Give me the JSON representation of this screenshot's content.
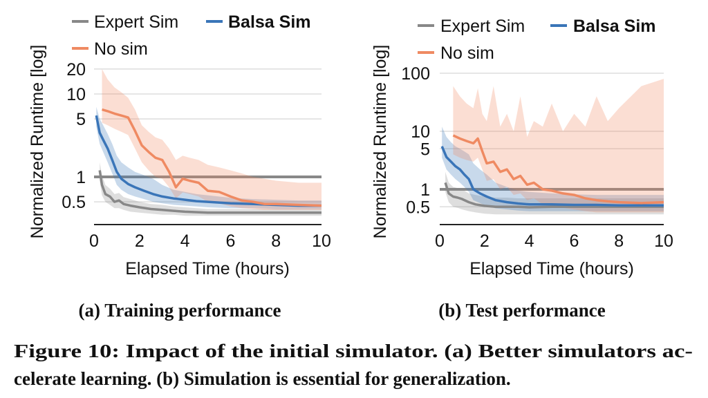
{
  "chart_data": [
    {
      "type": "line",
      "panel_caption": "(a) Training performance",
      "xlabel": "Elapsed Time (hours)",
      "ylabel": "Normalized Runtime [log]",
      "xlim": [
        0,
        10
      ],
      "ylim": [
        0.3,
        25
      ],
      "yscale": "log",
      "x_ticks": [
        "0",
        "2",
        "4",
        "6",
        "8",
        "10"
      ],
      "y_ticks": [
        "20",
        "10",
        "5",
        "1",
        "0.5"
      ],
      "grid": true,
      "legend_position": "top",
      "series": [
        {
          "name": "Expert Sim",
          "color": "#888888",
          "x": [
            0.25,
            0.35,
            0.5,
            0.7,
            0.9,
            1.1,
            1.3,
            1.6,
            2.0,
            2.5,
            3.0,
            3.5,
            4.0,
            5.0,
            6.0,
            7.0,
            8.0,
            9.0,
            10.0
          ],
          "y": [
            1.2,
            0.8,
            0.62,
            0.58,
            0.5,
            0.52,
            0.47,
            0.45,
            0.43,
            0.41,
            0.4,
            0.39,
            0.38,
            0.37,
            0.37,
            0.37,
            0.37,
            0.37,
            0.37
          ],
          "band_low": [
            0.9,
            0.6,
            0.5,
            0.46,
            0.42,
            0.42,
            0.4,
            0.38,
            0.37,
            0.36,
            0.35,
            0.35,
            0.34,
            0.34,
            0.34,
            0.34,
            0.34,
            0.34,
            0.34
          ],
          "band_high": [
            1.5,
            1.05,
            0.8,
            0.72,
            0.62,
            0.64,
            0.57,
            0.54,
            0.5,
            0.47,
            0.46,
            0.44,
            0.43,
            0.41,
            0.41,
            0.41,
            0.41,
            0.41,
            0.41
          ]
        },
        {
          "name": "Balsa Sim",
          "color": "#3a75b8",
          "x": [
            0.1,
            0.25,
            0.4,
            0.6,
            0.8,
            1.0,
            1.2,
            1.5,
            1.8,
            2.2,
            2.6,
            3.0,
            3.5,
            4.0,
            4.5,
            5.0,
            6.0,
            7.0,
            8.0,
            9.0,
            10.0
          ],
          "y": [
            5.5,
            3.4,
            2.8,
            2.2,
            1.6,
            1.15,
            0.95,
            0.82,
            0.75,
            0.68,
            0.62,
            0.58,
            0.55,
            0.53,
            0.51,
            0.5,
            0.48,
            0.47,
            0.46,
            0.45,
            0.45
          ],
          "band_low": [
            4.0,
            2.5,
            2.0,
            1.5,
            1.1,
            0.8,
            0.7,
            0.62,
            0.58,
            0.54,
            0.5,
            0.48,
            0.46,
            0.45,
            0.44,
            0.43,
            0.42,
            0.42,
            0.41,
            0.41,
            0.41
          ],
          "band_high": [
            7.0,
            5.0,
            4.2,
            3.3,
            2.5,
            1.8,
            1.5,
            1.3,
            1.15,
            1.05,
            0.95,
            0.8,
            0.7,
            0.66,
            0.62,
            0.6,
            0.56,
            0.54,
            0.53,
            0.52,
            0.52
          ]
        },
        {
          "name": "No sim",
          "color": "#ef8a62",
          "x": [
            0.35,
            0.6,
            0.9,
            1.2,
            1.5,
            1.8,
            2.1,
            2.4,
            2.7,
            3.0,
            3.3,
            3.6,
            3.9,
            4.2,
            4.6,
            5.0,
            5.5,
            6.0,
            6.5,
            7.0,
            7.5,
            8.0,
            9.0,
            10.0
          ],
          "y": [
            6.5,
            6.2,
            5.8,
            5.5,
            5.2,
            3.6,
            2.4,
            2.0,
            1.7,
            1.6,
            1.15,
            0.75,
            0.95,
            0.9,
            0.85,
            0.68,
            0.66,
            0.58,
            0.52,
            0.5,
            0.47,
            0.47,
            0.46,
            0.45
          ],
          "band_low": [
            4.5,
            4.2,
            3.8,
            3.5,
            3.2,
            2.2,
            1.5,
            1.2,
            1.0,
            0.95,
            0.75,
            0.55,
            0.65,
            0.62,
            0.58,
            0.5,
            0.48,
            0.44,
            0.42,
            0.41,
            0.4,
            0.4,
            0.4,
            0.4
          ],
          "band_high": [
            20.0,
            15.0,
            12.0,
            10.5,
            9.0,
            6.5,
            4.2,
            3.5,
            3.0,
            2.8,
            2.2,
            1.6,
            1.8,
            1.7,
            1.6,
            1.4,
            1.3,
            1.2,
            1.1,
            1.0,
            0.95,
            0.9,
            0.85,
            0.85
          ]
        }
      ]
    },
    {
      "type": "line",
      "panel_caption": "(b) Test performance",
      "xlabel": "Elapsed Time (hours)",
      "ylabel": "Normalized Runtime [log]",
      "xlim": [
        0,
        10
      ],
      "ylim": [
        0.3,
        150
      ],
      "yscale": "log",
      "x_ticks": [
        "0",
        "2",
        "4",
        "6",
        "8",
        "10"
      ],
      "y_ticks": [
        "100",
        "10",
        "5",
        "1",
        "0.5"
      ],
      "grid": true,
      "legend_position": "top",
      "series": [
        {
          "name": "Expert Sim",
          "color": "#888888",
          "x": [
            0.25,
            0.4,
            0.6,
            0.8,
            1.0,
            1.3,
            1.6,
            2.0,
            2.5,
            3.0,
            3.5,
            4.0,
            5.0,
            6.0,
            7.0,
            8.0,
            9.0,
            10.0
          ],
          "y": [
            1.3,
            0.85,
            0.75,
            0.72,
            0.68,
            0.6,
            0.55,
            0.52,
            0.5,
            0.5,
            0.5,
            0.49,
            0.5,
            0.5,
            0.5,
            0.5,
            0.5,
            0.5
          ],
          "band_low": [
            0.9,
            0.6,
            0.5,
            0.48,
            0.45,
            0.42,
            0.4,
            0.38,
            0.37,
            0.37,
            0.37,
            0.37,
            0.37,
            0.37,
            0.37,
            0.37,
            0.37,
            0.37
          ],
          "band_high": [
            2.0,
            1.3,
            1.1,
            1.05,
            1.0,
            0.85,
            0.8,
            0.75,
            0.72,
            0.72,
            0.7,
            0.7,
            0.7,
            0.7,
            0.7,
            0.7,
            0.7,
            0.7
          ]
        },
        {
          "name": "Balsa Sim",
          "color": "#3a75b8",
          "x": [
            0.1,
            0.3,
            0.5,
            0.7,
            0.9,
            1.1,
            1.3,
            1.5,
            1.8,
            2.1,
            2.5,
            3.0,
            3.5,
            4.0,
            5.0,
            6.0,
            7.0,
            8.0,
            9.0,
            10.0
          ],
          "y": [
            5.5,
            3.6,
            3.0,
            2.5,
            2.2,
            1.8,
            1.5,
            1.0,
            0.85,
            0.75,
            0.65,
            0.6,
            0.57,
            0.55,
            0.55,
            0.54,
            0.54,
            0.53,
            0.53,
            0.53
          ],
          "band_low": [
            3.5,
            2.2,
            1.8,
            1.5,
            1.3,
            1.1,
            0.9,
            0.65,
            0.58,
            0.52,
            0.47,
            0.45,
            0.43,
            0.42,
            0.42,
            0.42,
            0.42,
            0.42,
            0.42,
            0.42
          ],
          "band_high": [
            12.0,
            8.0,
            6.5,
            5.5,
            5.0,
            4.5,
            4.0,
            2.8,
            2.2,
            1.8,
            1.3,
            1.1,
            0.95,
            0.9,
            0.85,
            0.82,
            0.8,
            0.8,
            0.8,
            0.8
          ]
        },
        {
          "name": "No sim",
          "color": "#ef8a62",
          "x": [
            0.6,
            0.9,
            1.2,
            1.5,
            1.7,
            1.9,
            2.1,
            2.4,
            2.7,
            3.0,
            3.3,
            3.6,
            3.9,
            4.2,
            4.6,
            5.0,
            5.5,
            6.0,
            6.5,
            7.0,
            7.5,
            8.0,
            9.0,
            10.0
          ],
          "y": [
            8.5,
            7.5,
            6.8,
            6.2,
            7.5,
            4.5,
            2.8,
            3.0,
            2.0,
            2.2,
            1.5,
            1.7,
            1.2,
            1.3,
            1.0,
            0.95,
            0.85,
            0.8,
            0.7,
            0.65,
            0.62,
            0.6,
            0.58,
            0.6
          ],
          "band_low": [
            4.0,
            3.5,
            3.2,
            3.0,
            3.5,
            2.2,
            1.4,
            1.5,
            1.0,
            1.1,
            0.8,
            0.85,
            0.65,
            0.7,
            0.55,
            0.52,
            0.48,
            0.45,
            0.42,
            0.4,
            0.4,
            0.4,
            0.4,
            0.4
          ],
          "band_high": [
            60.0,
            40.0,
            30.0,
            25.0,
            55.0,
            20.0,
            15.0,
            60.0,
            12.0,
            20.0,
            10.0,
            40.0,
            8.0,
            15.0,
            12.0,
            30.0,
            10.0,
            20.0,
            12.0,
            40.0,
            15.0,
            25.0,
            60.0,
            80.0
          ]
        }
      ]
    }
  ],
  "figure_caption": {
    "line1": "Figure 10: Impact of the initial simulator. (a) Better simulators ac-",
    "line2": "celerate learning. (b) Simulation is essential for generalization."
  }
}
